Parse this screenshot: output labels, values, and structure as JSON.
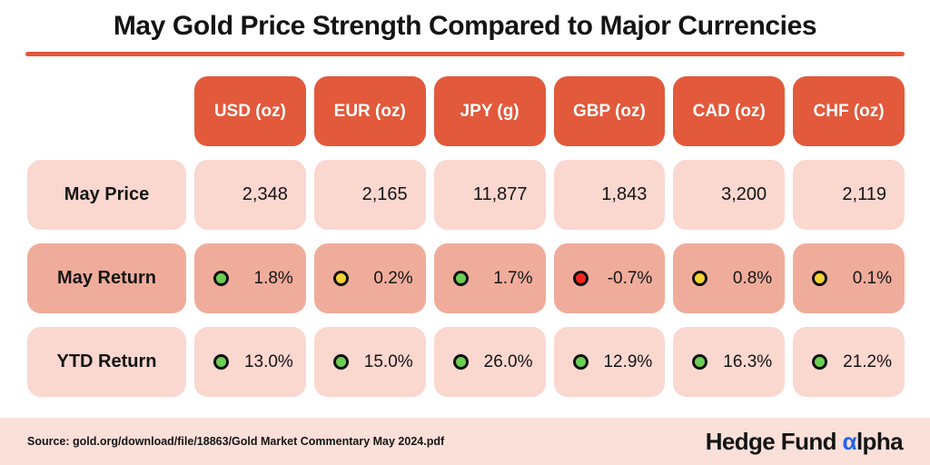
{
  "title": "May Gold Price Strength Compared to Major Currencies",
  "colors": {
    "accent": "#e2593b",
    "header_bg": "#e2593b",
    "row_light_bg": "#fad7cf",
    "row_dark_bg": "#f0ac9b",
    "footer_bg": "#fbdfd9",
    "green": "#6cce53",
    "yellow": "#f5d232",
    "red": "#f5261f",
    "logo_alpha_blue": "#2563eb"
  },
  "chart_data": {
    "type": "table",
    "title": "May Gold Price Strength Compared to Major Currencies",
    "columns": [
      "USD (oz)",
      "EUR (oz)",
      "JPY (g)",
      "GBP (oz)",
      "CAD (oz)",
      "CHF (oz)"
    ],
    "rows": [
      {
        "label": "May Price",
        "values": [
          "2,348",
          "2,165",
          "11,877",
          "1,843",
          "3,200",
          "2,119"
        ],
        "indicators": null
      },
      {
        "label": "May Return",
        "values": [
          "1.8%",
          "0.2%",
          "1.7%",
          "-0.7%",
          "0.8%",
          "0.1%"
        ],
        "indicators": [
          "green",
          "yellow",
          "green",
          "red",
          "yellow",
          "yellow"
        ]
      },
      {
        "label": "YTD Return",
        "values": [
          "13.0%",
          "15.0%",
          "26.0%",
          "12.9%",
          "16.3%",
          "21.2%"
        ],
        "indicators": [
          "green",
          "green",
          "green",
          "green",
          "green",
          "green"
        ]
      }
    ],
    "legend_hint": "dot color encodes return direction/strength: green = strong positive, yellow = flat/slightly positive, red = negative"
  },
  "footer": {
    "source": "Source: gold.org/download/file/18863/Gold Market Commentary May 2024.pdf",
    "logo": {
      "prefix": "Hedge Fund ",
      "alpha": "α",
      "suffix": "lpha"
    }
  }
}
